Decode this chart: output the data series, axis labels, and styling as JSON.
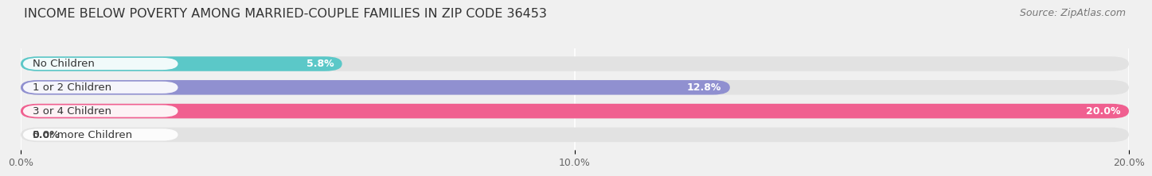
{
  "title": "INCOME BELOW POVERTY AMONG MARRIED-COUPLE FAMILIES IN ZIP CODE 36453",
  "source": "Source: ZipAtlas.com",
  "categories": [
    "No Children",
    "1 or 2 Children",
    "3 or 4 Children",
    "5 or more Children"
  ],
  "values": [
    5.8,
    12.8,
    20.0,
    0.0
  ],
  "bar_colors": [
    "#5bc8c8",
    "#9090d0",
    "#f06090",
    "#f5c8a0"
  ],
  "xlim": [
    0,
    20.0
  ],
  "xticks": [
    0.0,
    10.0,
    20.0
  ],
  "xticklabels": [
    "0.0%",
    "10.0%",
    "20.0%"
  ],
  "background_color": "#f0f0f0",
  "bar_bg_color": "#e2e2e2",
  "title_fontsize": 11.5,
  "source_fontsize": 9,
  "cat_fontsize": 9.5,
  "val_fontsize": 9,
  "tick_fontsize": 9,
  "bar_height": 0.62,
  "fig_width": 14.06,
  "fig_height": 2.33
}
